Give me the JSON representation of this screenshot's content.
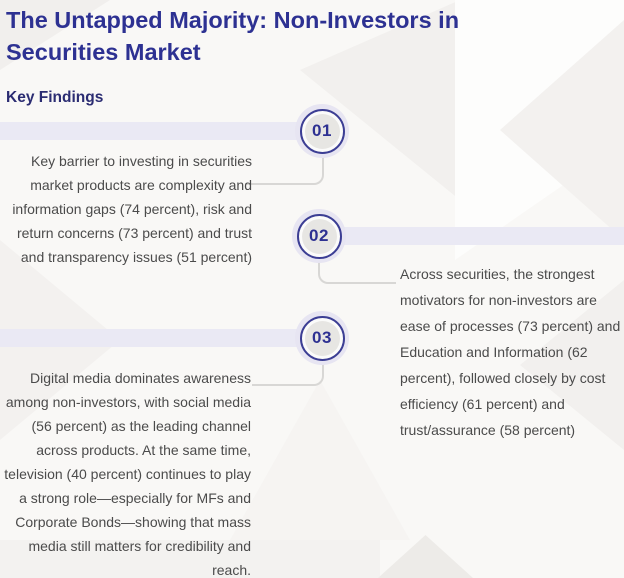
{
  "header": {
    "title": "The Untapped Majority: Non-Investors in Securities Market",
    "section_heading": "Key Findings"
  },
  "findings": [
    {
      "number": "01",
      "side": "left",
      "text": "Key barrier to investing in securities market products are complexity and information gaps (74 percent), risk and return concerns (73 percent) and trust and transparency issues (51 percent)"
    },
    {
      "number": "02",
      "side": "right",
      "text": "Across securities, the strongest motivators for non-investors are ease of processes (73 percent) and Education and Information (62 percent), followed closely by cost efficiency  (61 percent) and trust/assurance (58 percent)"
    },
    {
      "number": "03",
      "side": "left",
      "text": "Digital media dominates awareness among non-investors, with social media (56 percent) as the leading channel across products.  At the same time, television (40 percent) continues to play a strong role—especially for MFs and Corporate Bonds—showing that mass media still matters for credibility and reach."
    }
  ],
  "theme": {
    "title_color": "#2d3192",
    "heading_color": "#2b2c72",
    "body_text_color": "#4b4b4b",
    "badge_ring_color": "#3c3e94",
    "badge_number_color": "#2e3192",
    "accent_band_color": "#eae9f4",
    "connector_color": "#d8d7d5",
    "background_color": "#f9f8f6"
  }
}
